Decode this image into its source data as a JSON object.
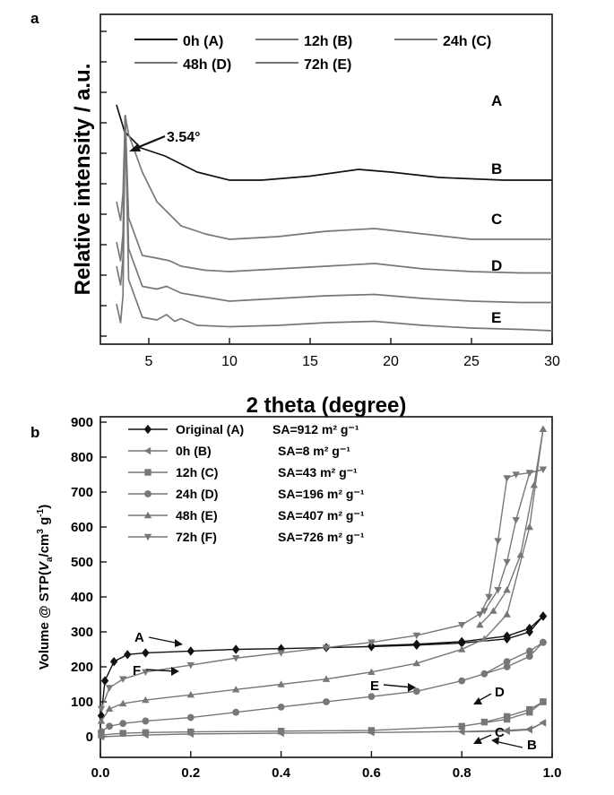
{
  "chart_data": [
    {
      "panel_label": "a",
      "type": "line",
      "xlabel": "2 theta (degree)",
      "ylabel": "Relative intensity / a.u.",
      "xlim": [
        2,
        30
      ],
      "x_ticks": [
        5,
        10,
        15,
        20,
        25,
        30
      ],
      "y_axis": "arbitrary units, curves vertically offset, no tick labels",
      "legend": [
        "0h (A)",
        "12h (B)",
        "24h (C)",
        "48h (D)",
        "72h (E)"
      ],
      "legend_position": "top",
      "annotation": "3.54°",
      "colors": {
        "A": "#111111",
        "others": "#777777"
      },
      "series": [
        {
          "name": "0h (A)",
          "curve_label": "A",
          "peak": 0,
          "points": [
            [
              3.0,
              8.6
            ],
            [
              3.5,
              7.6
            ],
            [
              4.5,
              7.0
            ],
            [
              6,
              6.7
            ],
            [
              8,
              6.1
            ],
            [
              10,
              5.8
            ],
            [
              12,
              5.8
            ],
            [
              15,
              5.95
            ],
            [
              18,
              6.2
            ],
            [
              20,
              6.1
            ],
            [
              23,
              5.9
            ],
            [
              27,
              5.8
            ],
            [
              30,
              5.8
            ]
          ]
        },
        {
          "name": "12h (B)",
          "curve_label": "B",
          "peak": 3.54,
          "points": [
            [
              3.0,
              5.0
            ],
            [
              4.6,
              6.1
            ],
            [
              5.5,
              5.0
            ],
            [
              7,
              4.1
            ],
            [
              8.5,
              3.8
            ],
            [
              10,
              3.6
            ],
            [
              13,
              3.7
            ],
            [
              16,
              3.9
            ],
            [
              19,
              4.0
            ],
            [
              22,
              3.8
            ],
            [
              25,
              3.6
            ],
            [
              28,
              3.6
            ],
            [
              30,
              3.6
            ]
          ]
        },
        {
          "name": "24h (C)",
          "curve_label": "C",
          "peak": 3.54,
          "points": [
            [
              3.0,
              3.5
            ],
            [
              4.6,
              3.0
            ],
            [
              5.5,
              2.9
            ],
            [
              6.3,
              2.8
            ],
            [
              7,
              2.6
            ],
            [
              8.5,
              2.45
            ],
            [
              10,
              2.4
            ],
            [
              13,
              2.5
            ],
            [
              16,
              2.6
            ],
            [
              19,
              2.7
            ],
            [
              22,
              2.5
            ],
            [
              25,
              2.4
            ],
            [
              28,
              2.35
            ],
            [
              30,
              2.35
            ]
          ]
        },
        {
          "name": "48h (D)",
          "curve_label": "D",
          "peak": 3.54,
          "points": [
            [
              3.0,
              2.6
            ],
            [
              4.6,
              1.85
            ],
            [
              5.5,
              1.75
            ],
            [
              6.1,
              1.85
            ],
            [
              7,
              1.6
            ],
            [
              8.5,
              1.45
            ],
            [
              10,
              1.3
            ],
            [
              13,
              1.4
            ],
            [
              16,
              1.5
            ],
            [
              19,
              1.55
            ],
            [
              22,
              1.4
            ],
            [
              25,
              1.3
            ],
            [
              28,
              1.25
            ],
            [
              30,
              1.25
            ]
          ]
        },
        {
          "name": "72h (E)",
          "curve_label": "E",
          "peak": 3.54,
          "points": [
            [
              3.0,
              1.2
            ],
            [
              4.6,
              0.7
            ],
            [
              5.5,
              0.6
            ],
            [
              6.1,
              0.8
            ],
            [
              6.6,
              0.55
            ],
            [
              7.0,
              0.65
            ],
            [
              8,
              0.4
            ],
            [
              10,
              0.35
            ],
            [
              13,
              0.4
            ],
            [
              16,
              0.5
            ],
            [
              19,
              0.55
            ],
            [
              22,
              0.4
            ],
            [
              25,
              0.3
            ],
            [
              28,
              0.25
            ],
            [
              30,
              0.2
            ]
          ]
        }
      ]
    },
    {
      "panel_label": "b",
      "type": "line",
      "xlabel": "",
      "ylabel": "Volume @ STP(V_a/cm³ g⁻¹)",
      "xlim": [
        0.0,
        1.0
      ],
      "ylim": [
        -50,
        900
      ],
      "x_ticks": [
        0.0,
        0.2,
        0.4,
        0.6,
        0.8,
        1.0
      ],
      "y_ticks": [
        0,
        100,
        200,
        300,
        400,
        500,
        600,
        700,
        800,
        900
      ],
      "legend_position": "top-left",
      "colors": {
        "A": "#111111",
        "others": "#777777"
      },
      "series": [
        {
          "name": "Original (A)",
          "sa": "SA=912 m² g⁻¹",
          "marker": "diamond",
          "curve_label": "A",
          "adsorption": [
            [
              0.002,
              60
            ],
            [
              0.01,
              160
            ],
            [
              0.03,
              215
            ],
            [
              0.06,
              235
            ],
            [
              0.1,
              240
            ],
            [
              0.2,
              245
            ],
            [
              0.3,
              250
            ],
            [
              0.4,
              252
            ],
            [
              0.5,
              255
            ],
            [
              0.6,
              258
            ],
            [
              0.7,
              262
            ],
            [
              0.8,
              268
            ],
            [
              0.9,
              280
            ],
            [
              0.95,
              300
            ],
            [
              0.98,
              345
            ]
          ],
          "desorption": [
            [
              0.98,
              345
            ],
            [
              0.95,
              310
            ],
            [
              0.9,
              288
            ],
            [
              0.8,
              272
            ],
            [
              0.7,
              265
            ],
            [
              0.6,
              260
            ]
          ]
        },
        {
          "name": "0h (B)",
          "sa": "SA=8 m² g⁻¹",
          "marker": "left-triangle",
          "curve_label": "B",
          "adsorption": [
            [
              0.002,
              0
            ],
            [
              0.1,
              5
            ],
            [
              0.2,
              8
            ],
            [
              0.4,
              10
            ],
            [
              0.6,
              12
            ],
            [
              0.8,
              15
            ],
            [
              0.9,
              18
            ],
            [
              0.95,
              22
            ],
            [
              0.98,
              40
            ]
          ],
          "desorption": [
            [
              0.98,
              40
            ],
            [
              0.95,
              20
            ],
            [
              0.9,
              16
            ],
            [
              0.8,
              14
            ]
          ]
        },
        {
          "name": "12h (C)",
          "sa": "SA=43 m² g⁻¹",
          "marker": "square",
          "curve_label": "C",
          "adsorption": [
            [
              0.002,
              5
            ],
            [
              0.05,
              10
            ],
            [
              0.1,
              12
            ],
            [
              0.2,
              14
            ],
            [
              0.4,
              16
            ],
            [
              0.6,
              18
            ],
            [
              0.8,
              30
            ],
            [
              0.9,
              50
            ],
            [
              0.95,
              70
            ],
            [
              0.98,
              100
            ]
          ],
          "desorption": [
            [
              0.98,
              100
            ],
            [
              0.95,
              78
            ],
            [
              0.9,
              58
            ],
            [
              0.85,
              42
            ]
          ]
        },
        {
          "name": "24h (D)",
          "sa": "SA=196 m² g⁻¹",
          "marker": "circle",
          "curve_label": "D",
          "adsorption": [
            [
              0.002,
              15
            ],
            [
              0.02,
              30
            ],
            [
              0.05,
              38
            ],
            [
              0.1,
              45
            ],
            [
              0.2,
              55
            ],
            [
              0.3,
              70
            ],
            [
              0.4,
              85
            ],
            [
              0.5,
              100
            ],
            [
              0.6,
              115
            ],
            [
              0.7,
              130
            ],
            [
              0.8,
              160
            ],
            [
              0.9,
              200
            ],
            [
              0.95,
              230
            ],
            [
              0.98,
              270
            ]
          ],
          "desorption": [
            [
              0.98,
              270
            ],
            [
              0.95,
              245
            ],
            [
              0.9,
              215
            ],
            [
              0.85,
              180
            ]
          ]
        },
        {
          "name": "48h (E)",
          "sa": "SA=407 m² g⁻¹",
          "marker": "triangle",
          "curve_label": "E",
          "adsorption": [
            [
              0.002,
              45
            ],
            [
              0.02,
              80
            ],
            [
              0.05,
              95
            ],
            [
              0.1,
              105
            ],
            [
              0.2,
              120
            ],
            [
              0.3,
              135
            ],
            [
              0.4,
              150
            ],
            [
              0.5,
              165
            ],
            [
              0.6,
              185
            ],
            [
              0.7,
              210
            ],
            [
              0.8,
              250
            ],
            [
              0.85,
              280
            ],
            [
              0.9,
              350
            ],
            [
              0.95,
              600
            ],
            [
              0.98,
              880
            ]
          ],
          "desorption": [
            [
              0.98,
              880
            ],
            [
              0.96,
              720
            ],
            [
              0.93,
              520
            ],
            [
              0.9,
              420
            ],
            [
              0.87,
              360
            ],
            [
              0.84,
              320
            ]
          ]
        },
        {
          "name": "72h (F)",
          "sa": "SA=726 m² g⁻¹",
          "marker": "down-triangle",
          "curve_label": "F",
          "adsorption": [
            [
              0.002,
              80
            ],
            [
              0.02,
              140
            ],
            [
              0.05,
              165
            ],
            [
              0.1,
              185
            ],
            [
              0.2,
              205
            ],
            [
              0.3,
              225
            ],
            [
              0.4,
              240
            ],
            [
              0.5,
              255
            ],
            [
              0.6,
              270
            ],
            [
              0.7,
              290
            ],
            [
              0.8,
              320
            ],
            [
              0.85,
              360
            ],
            [
              0.88,
              420
            ],
            [
              0.9,
              500
            ],
            [
              0.92,
              620
            ],
            [
              0.95,
              755
            ],
            [
              0.98,
              765
            ]
          ],
          "desorption": [
            [
              0.98,
              765
            ],
            [
              0.95,
              755
            ],
            [
              0.92,
              750
            ],
            [
              0.9,
              740
            ],
            [
              0.88,
              560
            ],
            [
              0.86,
              400
            ],
            [
              0.84,
              350
            ]
          ]
        }
      ]
    }
  ]
}
